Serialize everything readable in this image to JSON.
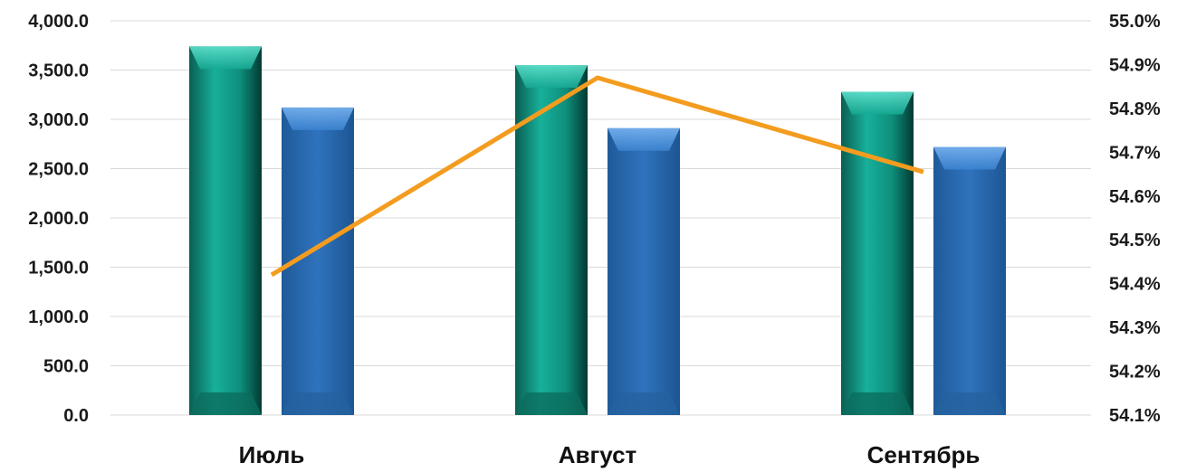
{
  "chart_data": {
    "type": "bar",
    "categories": [
      "Июль",
      "Август",
      "Сентябрь"
    ],
    "series": [
      {
        "kind": "bar",
        "axis": "left",
        "values": [
          3740,
          3550,
          3280
        ],
        "color": "#0f9a86"
      },
      {
        "kind": "bar",
        "axis": "left",
        "values": [
          3120,
          2910,
          2720
        ],
        "color": "#2b6cb0"
      },
      {
        "kind": "line",
        "axis": "right",
        "values": [
          54.42,
          54.87,
          54.655
        ],
        "color": "#f39c1f"
      }
    ],
    "left_axis": {
      "ylim": [
        0,
        4000
      ],
      "ticks": [
        0,
        500,
        1000,
        1500,
        2000,
        2500,
        3000,
        3500,
        4000
      ],
      "tick_labels": [
        "0.0",
        "500.0",
        "1,000.0",
        "1,500.0",
        "2,000.0",
        "2,500.0",
        "3,000.0",
        "3,500.0",
        "4,000.0"
      ]
    },
    "right_axis": {
      "ylim": [
        54.1,
        55.0
      ],
      "ticks": [
        54.1,
        54.2,
        54.3,
        54.4,
        54.5,
        54.6,
        54.7,
        54.8,
        54.9,
        55.0
      ],
      "tick_labels": [
        "54.1%",
        "54.2%",
        "54.3%",
        "54.4%",
        "54.5%",
        "54.6%",
        "54.7%",
        "54.8%",
        "54.9%",
        "55.0%"
      ]
    },
    "grid": true,
    "legend": "none"
  }
}
